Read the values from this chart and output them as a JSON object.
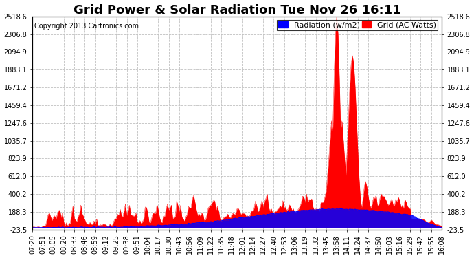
{
  "title": "Grid Power & Solar Radiation Tue Nov 26 16:11",
  "copyright": "Copyright 2013 Cartronics.com",
  "yticks": [
    2518.6,
    2306.8,
    2094.9,
    1883.1,
    1671.2,
    1459.4,
    1247.6,
    1035.7,
    823.9,
    612.0,
    400.2,
    188.3,
    -23.5
  ],
  "ymin": -23.5,
  "ymax": 2518.6,
  "xtick_labels": [
    "07:20",
    "07:51",
    "08:05",
    "08:20",
    "08:33",
    "08:46",
    "08:59",
    "09:12",
    "09:25",
    "09:38",
    "09:51",
    "10:04",
    "10:17",
    "10:30",
    "10:43",
    "10:56",
    "11:09",
    "11:22",
    "11:35",
    "11:48",
    "12:01",
    "12:14",
    "12:27",
    "12:40",
    "12:53",
    "13:06",
    "13:19",
    "13:32",
    "13:45",
    "13:58",
    "14:11",
    "14:24",
    "14:37",
    "14:50",
    "15:03",
    "15:16",
    "15:29",
    "15:42",
    "15:55",
    "16:08"
  ],
  "legend_radiation_label": "Radiation (w/m2)",
  "legend_grid_label": "Grid (AC Watts)",
  "radiation_color": "#0000ff",
  "grid_color": "#ff0000",
  "background_color": "#ffffff",
  "plot_bg_color": "#ffffff",
  "grid_line_color": "#c0c0c0",
  "title_fontsize": 13,
  "copyright_fontsize": 7,
  "tick_fontsize": 7,
  "legend_fontsize": 8
}
